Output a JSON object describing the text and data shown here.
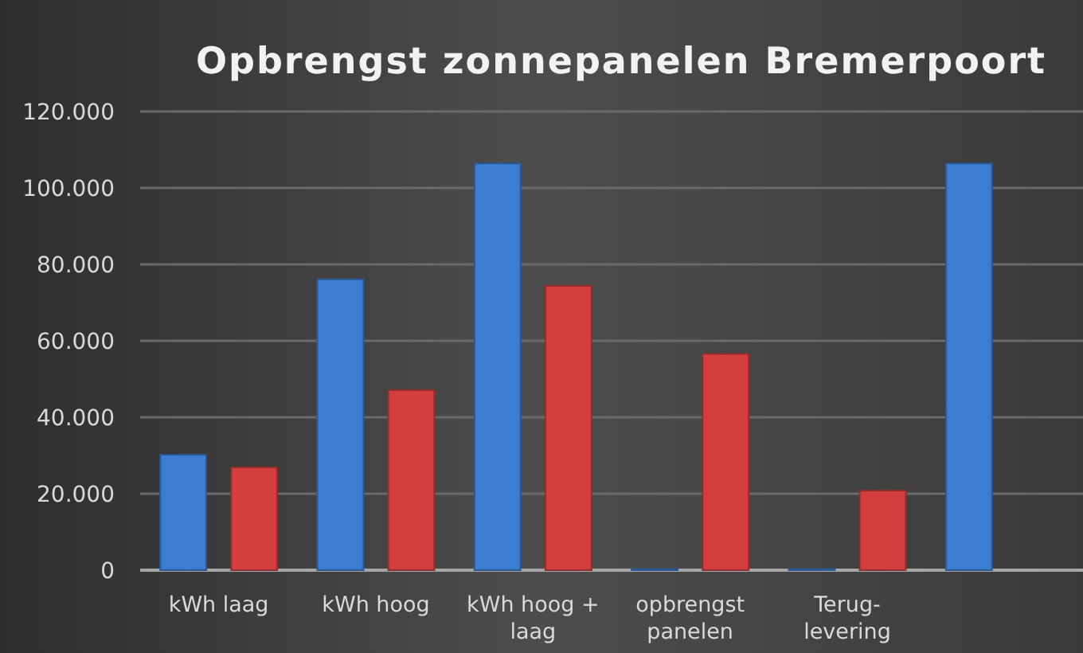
{
  "chart_data": {
    "type": "bar",
    "title": "Opbrengst zonnepanelen Bremerpoort",
    "categories": [
      "kWh laag",
      "kWh hoog",
      "kWh hoog + laag",
      "opbrengst panelen",
      "Terug-levering",
      null
    ],
    "series": [
      {
        "color": "#3b7dd0",
        "values": [
          30200,
          76100,
          106400,
          300,
          300,
          106400
        ]
      },
      {
        "color": "#d33f3f",
        "values": [
          26900,
          47100,
          74400,
          56600,
          20800,
          null
        ]
      }
    ],
    "ylim": [
      0,
      120000
    ],
    "yticks": [
      {
        "value": 0,
        "label": "0"
      },
      {
        "value": 20000,
        "label": "20.000"
      },
      {
        "value": 40000,
        "label": "40.000"
      },
      {
        "value": 60000,
        "label": "60.000"
      },
      {
        "value": 80000,
        "label": "80.000"
      },
      {
        "value": 100000,
        "label": "100.000"
      },
      {
        "value": 120000,
        "label": "120.000"
      }
    ],
    "grid": "y"
  }
}
